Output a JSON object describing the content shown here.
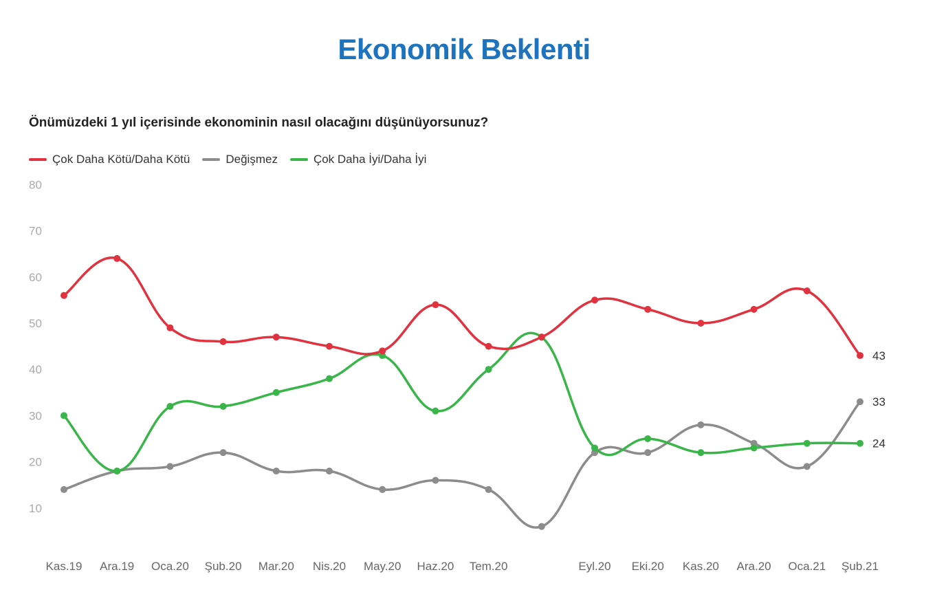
{
  "header": {
    "title": "Ekonomik Beklenti",
    "subtitle": "Önümüzdeki 1 yıl içerisinde ekonominin nasıl olacağını düşünüyorsunuz?"
  },
  "legend": {
    "items": [
      {
        "label": "Çok Daha Kötü/Daha Kötü",
        "color": "#e0333f"
      },
      {
        "label": "Değişmez",
        "color": "#8c8c8c"
      },
      {
        "label": "Çok Daha İyi/Daha İyi",
        "color": "#3ab54a"
      }
    ]
  },
  "chart_data": {
    "type": "line",
    "title": "Ekonomik Beklenti",
    "subtitle": "Önümüzdeki 1 yıl içerisinde ekonominin nasıl olacağını düşünüyorsunuz?",
    "categories": [
      "Kas.19",
      "Ara.19",
      "Oca.20",
      "Şub.20",
      "Mar.20",
      "Nis.20",
      "May.20",
      "Haz.20",
      "Tem.20",
      "",
      "Eyl.20",
      "Eki.20",
      "Kas.20",
      "Ara.20",
      "Oca.21",
      "Şub.21"
    ],
    "ylim": [
      0,
      80
    ],
    "yticks": [
      10,
      20,
      30,
      40,
      50,
      60,
      70,
      80
    ],
    "grid": false,
    "legend_position": "top-left",
    "series": [
      {
        "name": "Çok Daha Kötü/Daha Kötü",
        "color": "#e0333f",
        "values": [
          56,
          64,
          49,
          46,
          47,
          45,
          44,
          54,
          45,
          47,
          55,
          53,
          50,
          53,
          57,
          43
        ],
        "end_label": "43"
      },
      {
        "name": "Değişmez",
        "color": "#8c8c8c",
        "values": [
          14,
          18,
          19,
          22,
          18,
          18,
          14,
          16,
          14,
          6,
          22,
          22,
          28,
          24,
          19,
          33
        ],
        "end_label": "33"
      },
      {
        "name": "Çok Daha İyi/Daha İyi",
        "color": "#3ab54a",
        "values": [
          30,
          18,
          32,
          32,
          35,
          38,
          43,
          31,
          40,
          47,
          23,
          25,
          22,
          23,
          24,
          24
        ],
        "end_label": "24"
      }
    ]
  }
}
